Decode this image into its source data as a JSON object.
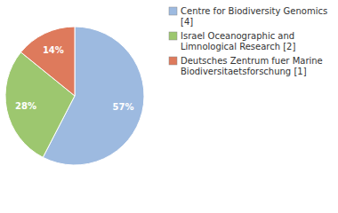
{
  "chart_data": {
    "type": "pie",
    "categories": [
      "Centre for Biodiversity Genomics [4]",
      "Israel Oceanographic and Limnological Research [2]",
      "Deutsches Zentrum fuer Marine Biodiversitaetsforschung [1]"
    ],
    "values": [
      57,
      28,
      14
    ],
    "value_labels": [
      "57%",
      "28%",
      "14%"
    ],
    "colors": [
      "#9dbae0",
      "#9dc76f",
      "#de7a5c"
    ],
    "data_labels": true,
    "legend": "top-right"
  }
}
